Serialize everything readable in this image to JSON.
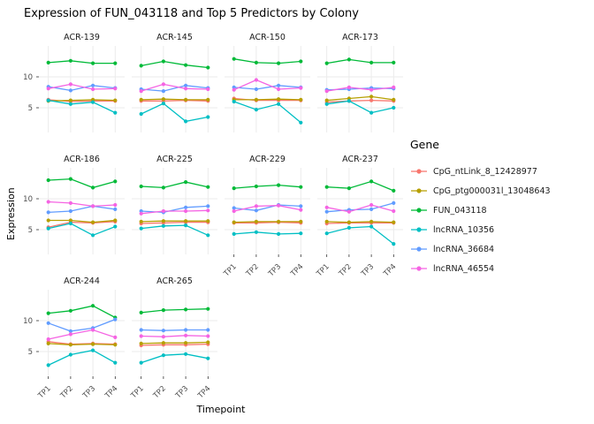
{
  "title": "Expression of FUN_043118 and Top 5 Predictors by Colony",
  "axes": {
    "x_label": "Timepoint",
    "y_label": "Expression"
  },
  "legend": {
    "title": "Gene"
  },
  "chart_data": {
    "type": "line",
    "x": [
      "TP1",
      "TP2",
      "TP3",
      "TP4"
    ],
    "ylim": [
      1,
      15
    ],
    "y_ticks": [
      5,
      10
    ],
    "grid": "light",
    "legend_position": "right",
    "genes": [
      {
        "name": "CpG_ntLink_8_12428977",
        "color": "#F8766D"
      },
      {
        "name": "CpG_ptg000031l_13048643",
        "color": "#B79F00"
      },
      {
        "name": "FUN_043118",
        "color": "#00BA38"
      },
      {
        "name": "lncRNA_10356",
        "color": "#00BFC4"
      },
      {
        "name": "lncRNA_36684",
        "color": "#619CFF"
      },
      {
        "name": "lncRNA_46554",
        "color": "#F564E3"
      }
    ],
    "facets": [
      {
        "colony": "ACR-139",
        "values": {
          "CpG_ntLink_8_12428977": [
            6.3,
            6.0,
            6.1,
            6.1
          ],
          "CpG_ptg000031l_13048643": [
            6.1,
            6.2,
            6.3,
            6.2
          ],
          "FUN_043118": [
            12.3,
            12.6,
            12.2,
            12.2
          ],
          "lncRNA_10356": [
            6.2,
            5.6,
            5.9,
            4.2
          ],
          "lncRNA_36684": [
            8.4,
            7.8,
            8.6,
            8.2
          ],
          "lncRNA_46554": [
            8.1,
            8.8,
            8.0,
            8.1
          ]
        }
      },
      {
        "colony": "ACR-145",
        "values": {
          "CpG_ntLink_8_12428977": [
            6.1,
            6.1,
            6.2,
            6.1
          ],
          "CpG_ptg000031l_13048643": [
            6.3,
            6.4,
            6.3,
            6.3
          ],
          "FUN_043118": [
            11.8,
            12.5,
            11.9,
            11.5
          ],
          "lncRNA_10356": [
            4.0,
            5.7,
            2.8,
            3.5
          ],
          "lncRNA_36684": [
            8.0,
            7.7,
            8.6,
            8.2
          ],
          "lncRNA_46554": [
            7.7,
            8.8,
            8.1,
            8.0
          ]
        }
      },
      {
        "colony": "ACR-150",
        "values": {
          "CpG_ntLink_8_12428977": [
            6.5,
            6.2,
            6.2,
            6.2
          ],
          "CpG_ptg000031l_13048643": [
            6.3,
            6.3,
            6.4,
            6.3
          ],
          "FUN_043118": [
            12.9,
            12.3,
            12.2,
            12.5
          ],
          "lncRNA_10356": [
            6.0,
            4.7,
            5.6,
            2.6
          ],
          "lncRNA_36684": [
            8.3,
            8.0,
            8.6,
            8.3
          ],
          "lncRNA_46554": [
            7.9,
            9.5,
            8.0,
            8.2
          ]
        }
      },
      {
        "colony": "ACR-173",
        "values": {
          "CpG_ntLink_8_12428977": [
            5.9,
            6.1,
            6.2,
            6.1
          ],
          "CpG_ptg000031l_13048643": [
            6.2,
            6.5,
            6.8,
            6.3
          ],
          "FUN_043118": [
            12.2,
            12.8,
            12.3,
            12.3
          ],
          "lncRNA_10356": [
            5.6,
            6.1,
            4.2,
            5.0
          ],
          "lncRNA_36684": [
            7.9,
            8.0,
            8.2,
            8.1
          ],
          "lncRNA_46554": [
            7.7,
            8.3,
            7.9,
            8.3
          ]
        }
      },
      {
        "colony": "ACR-186",
        "values": {
          "CpG_ntLink_8_12428977": [
            5.4,
            6.2,
            6.1,
            6.3
          ],
          "CpG_ptg000031l_13048643": [
            6.5,
            6.5,
            6.2,
            6.5
          ],
          "FUN_043118": [
            13.0,
            13.2,
            11.8,
            12.8
          ],
          "lncRNA_10356": [
            5.2,
            6.0,
            4.1,
            5.5
          ],
          "lncRNA_36684": [
            7.8,
            8.0,
            8.8,
            8.3
          ],
          "lncRNA_46554": [
            9.5,
            9.3,
            8.8,
            9.0
          ]
        }
      },
      {
        "colony": "ACR-225",
        "values": {
          "CpG_ntLink_8_12428977": [
            6.0,
            6.1,
            6.2,
            6.2
          ],
          "CpG_ptg000031l_13048643": [
            6.3,
            6.4,
            6.4,
            6.4
          ],
          "FUN_043118": [
            12.0,
            11.8,
            12.7,
            11.9
          ],
          "lncRNA_10356": [
            5.2,
            5.6,
            5.7,
            4.1
          ],
          "lncRNA_36684": [
            8.0,
            7.8,
            8.6,
            8.8
          ],
          "lncRNA_46554": [
            7.6,
            8.0,
            8.0,
            8.1
          ]
        }
      },
      {
        "colony": "ACR-229",
        "values": {
          "CpG_ntLink_8_12428977": [
            6.1,
            6.1,
            6.2,
            6.1
          ],
          "CpG_ptg000031l_13048643": [
            6.2,
            6.3,
            6.3,
            6.3
          ],
          "FUN_043118": [
            11.7,
            12.0,
            12.2,
            11.9
          ],
          "lncRNA_10356": [
            4.3,
            4.6,
            4.3,
            4.4
          ],
          "lncRNA_36684": [
            8.5,
            8.1,
            9.0,
            8.8
          ],
          "lncRNA_46554": [
            8.0,
            8.8,
            8.9,
            8.2
          ]
        }
      },
      {
        "colony": "ACR-237",
        "values": {
          "CpG_ntLink_8_12428977": [
            6.0,
            6.1,
            6.1,
            6.1
          ],
          "CpG_ptg000031l_13048643": [
            6.3,
            6.2,
            6.3,
            6.2
          ],
          "FUN_043118": [
            11.9,
            11.7,
            12.8,
            11.3
          ],
          "lncRNA_10356": [
            4.4,
            5.3,
            5.5,
            2.7
          ],
          "lncRNA_36684": [
            7.9,
            8.2,
            8.3,
            9.3
          ],
          "lncRNA_46554": [
            8.6,
            7.9,
            9.0,
            8.0
          ]
        }
      },
      {
        "colony": "ACR-244",
        "values": {
          "CpG_ntLink_8_12428977": [
            6.6,
            6.2,
            6.3,
            6.2
          ],
          "CpG_ptg000031l_13048643": [
            6.3,
            6.1,
            6.2,
            6.1
          ],
          "FUN_043118": [
            11.2,
            11.6,
            12.4,
            10.5
          ],
          "lncRNA_10356": [
            2.8,
            4.5,
            5.2,
            3.2
          ],
          "lncRNA_36684": [
            9.6,
            8.3,
            8.8,
            10.2
          ],
          "lncRNA_46554": [
            7.0,
            7.8,
            8.5,
            7.3
          ]
        }
      },
      {
        "colony": "ACR-265",
        "values": {
          "CpG_ntLink_8_12428977": [
            6.0,
            6.1,
            6.1,
            6.2
          ],
          "CpG_ptg000031l_13048643": [
            6.3,
            6.4,
            6.4,
            6.5
          ],
          "FUN_043118": [
            11.3,
            11.7,
            11.8,
            11.9
          ],
          "lncRNA_10356": [
            3.2,
            4.4,
            4.6,
            3.9
          ],
          "lncRNA_36684": [
            8.5,
            8.4,
            8.5,
            8.5
          ],
          "lncRNA_46554": [
            7.5,
            7.4,
            7.6,
            7.5
          ]
        }
      }
    ]
  }
}
